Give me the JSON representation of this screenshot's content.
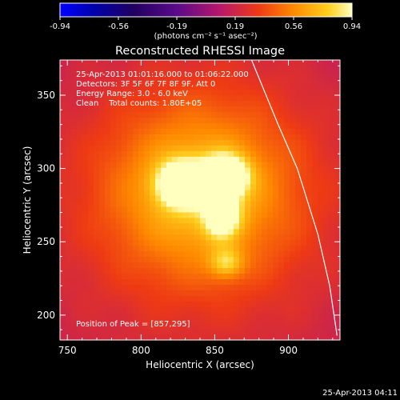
{
  "chart_data": {
    "type": "heatmap",
    "title": "Reconstructed RHESSI Image",
    "xlabel": "Heliocentric X (arcsec)",
    "ylabel": "Heliocentric Y (arcsec)",
    "xlim": [
      745,
      935
    ],
    "ylim": [
      183,
      374
    ],
    "x_ticks": [
      750,
      800,
      850,
      900
    ],
    "y_ticks": [
      200,
      250,
      300,
      350
    ],
    "colorbar": {
      "ticks": [
        "-0.94",
        "-0.56",
        "-0.19",
        "0.19",
        "0.56",
        "0.94"
      ],
      "range": [
        -0.94,
        0.94
      ],
      "unit_label": "(photons cm⁻² s⁻¹ asec⁻²)"
    },
    "annotations": [
      "25-Apr-2013 01:01:16.000 to 01:06:22.000",
      "Detectors: 3F 5F 6F 7F 8F 9F, Att 0",
      "Energy Range: 3.0 - 6.0 keV",
      "Clean    Total counts: 1.80E+05"
    ],
    "peak_label": "Position of Peak = [857,295]",
    "sources": [
      {
        "x": 857,
        "y": 295,
        "peak": 0.94,
        "sx": 10,
        "sy": 9
      },
      {
        "x": 828,
        "y": 290,
        "peak": 0.84,
        "sx": 11,
        "sy": 10
      },
      {
        "x": 855,
        "y": 268,
        "peak": 0.6,
        "sx": 8,
        "sy": 10
      },
      {
        "x": 858,
        "y": 236,
        "peak": 0.36,
        "sx": 8,
        "sy": 7
      },
      {
        "x": 840,
        "y": 285,
        "peak": 0.45,
        "sx": 42,
        "sy": 40
      },
      {
        "x": 842,
        "y": 278,
        "peak": 0.22,
        "sx": 95,
        "sy": 90
      }
    ],
    "limb_curve": [
      [
        875,
        374
      ],
      [
        893,
        330
      ],
      [
        906,
        300
      ],
      [
        920,
        255
      ],
      [
        928,
        220
      ],
      [
        933,
        186
      ]
    ]
  },
  "footer": {
    "timestamp": "25-Apr-2013 04:11"
  }
}
